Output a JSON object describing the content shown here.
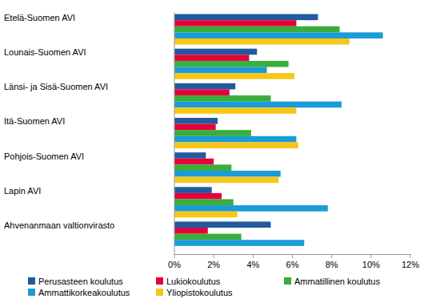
{
  "chart_data": {
    "type": "bar",
    "orientation": "horizontal",
    "categories": [
      "Etelä-Suomen AVI",
      "Lounais-Suomen AVI",
      "Länsi- ja Sisä-Suomen AVI",
      "Itä-Suomen AVI",
      "Pohjois-Suomen AVI",
      "Lapin AVI",
      "Ahvenanmaan valtionvirasto"
    ],
    "series": [
      {
        "name": "Perusasteen koulutus",
        "color": "#1f5b9e",
        "values": [
          7.3,
          4.2,
          3.1,
          2.2,
          1.6,
          1.9,
          4.9
        ]
      },
      {
        "name": "Lukiokoulutus",
        "color": "#e5003a",
        "values": [
          6.2,
          3.8,
          2.8,
          2.1,
          2.0,
          2.4,
          1.7
        ]
      },
      {
        "name": "Ammatillinen koulutus",
        "color": "#3aad3a",
        "values": [
          8.4,
          5.8,
          4.9,
          3.9,
          2.9,
          3.0,
          3.4
        ]
      },
      {
        "name": "Ammattikorkeakoulutus",
        "color": "#1b9bd7",
        "values": [
          10.6,
          4.7,
          8.5,
          6.2,
          5.4,
          7.8,
          6.6
        ]
      },
      {
        "name": "Yliopistokoulutus",
        "color": "#f6c619",
        "values": [
          8.9,
          6.1,
          6.2,
          6.3,
          5.3,
          3.2,
          null
        ]
      }
    ],
    "xlim": [
      0,
      12
    ],
    "xticks": [
      {
        "value": 0,
        "label": "0%"
      },
      {
        "value": 2,
        "label": "2%"
      },
      {
        "value": 4,
        "label": "4%"
      },
      {
        "value": 6,
        "label": "6%"
      },
      {
        "value": 8,
        "label": "8%"
      },
      {
        "value": 10,
        "label": "10%"
      },
      {
        "value": 12,
        "label": "12%"
      }
    ],
    "grid": false,
    "legend": "bottom"
  }
}
